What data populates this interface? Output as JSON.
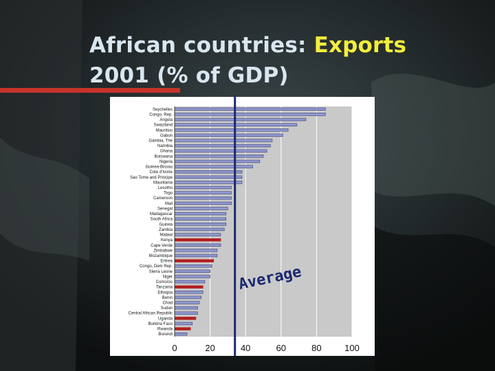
{
  "title": {
    "part1": "African countries: ",
    "part2": "Exports",
    "line2": "2001 (% of GDP)"
  },
  "colors": {
    "bar_default": "#9098cc",
    "bar_outline": "#3b3f7a",
    "bar_highlight": "#b21f1f",
    "average_line": "#1a2870",
    "title_text": "#d8e6f0",
    "title_highlight": "#f2ee3a",
    "underline": "#c4332a"
  },
  "average_label": "Average",
  "chart_data": {
    "type": "bar",
    "orientation": "horizontal",
    "categories": [
      "Seychelles",
      "Congo, Rep.",
      "Angola",
      "Swaziland",
      "Mauritius",
      "Gabon",
      "Gambia, The",
      "Namibia",
      "Ghana",
      "Botswana",
      "Nigeria",
      "Guinea-Bissau",
      "Cote d'Ivoire",
      "Sao Tome and Principe",
      "Mauritania",
      "Lesotho",
      "Togo",
      "Cameroon",
      "Mali",
      "Senegal",
      "Madagascar",
      "South Africa",
      "Guinea",
      "Zambia",
      "Malawi",
      "Kenya",
      "Cape Verde",
      "Zimbabwe",
      "Mozambique",
      "Eritrea",
      "Congo, Dem Rep.",
      "Sierra Leone",
      "Niger",
      "Comoros",
      "Tanzania",
      "Ethiopia",
      "Benin",
      "Chad",
      "Sudan",
      "Central African Republic",
      "Uganda",
      "Burkina Faso",
      "Rwanda",
      "Burundi"
    ],
    "values": [
      85,
      85,
      74,
      69,
      64,
      61,
      55,
      54,
      52,
      50,
      48,
      44,
      38,
      38,
      38,
      32,
      32,
      32,
      32,
      30,
      29,
      29,
      29,
      28,
      26,
      26,
      26,
      24,
      24,
      22,
      21,
      20,
      20,
      17,
      16,
      16,
      15,
      14,
      13,
      13,
      12,
      10,
      9,
      7
    ],
    "highlighted": [
      "Kenya",
      "Eritrea",
      "Tanzania",
      "Uganda",
      "Rwanda"
    ],
    "xticks": [
      "0",
      "20",
      "40",
      "60",
      "80",
      "100"
    ],
    "xlim": [
      0,
      100
    ],
    "average": 34,
    "grid": "x"
  }
}
